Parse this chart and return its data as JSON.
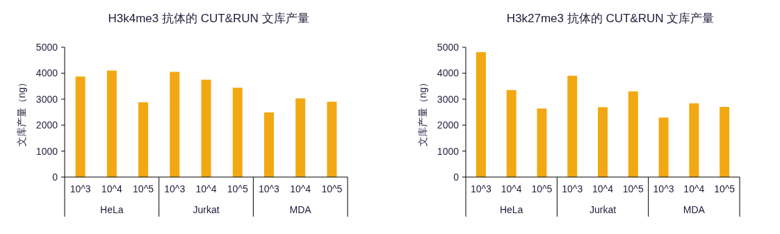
{
  "chart_data": [
    {
      "type": "bar",
      "title": "H3k4me3 抗体的 CUT&RUN 文库产量",
      "ylabel": "文库产量（ng）",
      "categories": [
        "10^3",
        "10^4",
        "10^5",
        "10^3",
        "10^4",
        "10^5",
        "10^3",
        "10^4",
        "10^5"
      ],
      "values": [
        3870,
        4100,
        2880,
        4050,
        3750,
        3440,
        2490,
        3030,
        2900
      ],
      "color": "#f2a812",
      "ylim": [
        0,
        5000
      ],
      "yticks": [
        0,
        1000,
        2000,
        3000,
        4000,
        5000
      ],
      "annotations": [
        "HeLa",
        "Jurkat",
        "MDA"
      ]
    },
    {
      "type": "bar",
      "title": "H3k27me3 抗体的 CUT&RUN 文库产量",
      "ylabel": "文库产量（ng）",
      "categories": [
        "10^3",
        "10^4",
        "10^5",
        "10^3",
        "10^4",
        "10^5",
        "10^3",
        "10^4",
        "10^5"
      ],
      "values": [
        4810,
        3350,
        2640,
        3900,
        2690,
        3300,
        2290,
        2840,
        2700
      ],
      "color": "#f2a812",
      "ylim": [
        0,
        5000
      ],
      "yticks": [
        0,
        1000,
        2000,
        3000,
        4000,
        5000
      ],
      "annotations": [
        "HeLa",
        "Jurkat",
        "MDA"
      ]
    }
  ]
}
